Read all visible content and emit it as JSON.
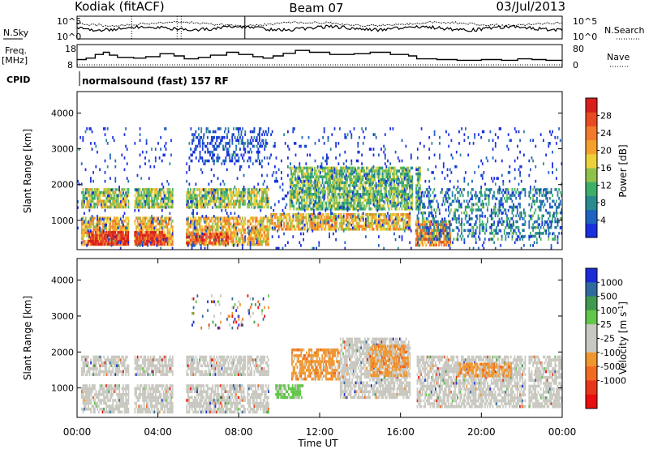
{
  "header": {
    "radar": "Kodiak (fitACF)",
    "beam": "Beam 07",
    "date": "03/Jul/2013"
  },
  "chart_data": [
    {
      "type": "line",
      "panel": "noise",
      "left_label": "N.Sky",
      "right_label": "N.Search",
      "left_ticks": [
        "10^5",
        "10^0"
      ],
      "right_ticks": [
        "10^5",
        "10^0"
      ],
      "yscale": "log"
    },
    {
      "type": "line",
      "panel": "frequency",
      "left_label_1": "Freq.",
      "left_label_2": "[MHz]",
      "right_label": "Nave",
      "left_ticks": [
        "18",
        "8"
      ],
      "right_ticks": [
        "80",
        "0"
      ],
      "freq_steps": [
        [
          0.0,
          10.5
        ],
        [
          0.45,
          11.5
        ],
        [
          0.9,
          14
        ],
        [
          1.3,
          15.5
        ],
        [
          1.6,
          13.5
        ],
        [
          2.0,
          12
        ],
        [
          2.8,
          11.5
        ],
        [
          3.4,
          12.5
        ],
        [
          4.1,
          14.5
        ],
        [
          4.8,
          13
        ],
        [
          5.3,
          11
        ],
        [
          6.0,
          12
        ],
        [
          6.6,
          13.5
        ],
        [
          7.4,
          15.5
        ],
        [
          8.0,
          14
        ],
        [
          8.7,
          12.5
        ],
        [
          9.2,
          11.5
        ],
        [
          9.7,
          13
        ],
        [
          10.2,
          14.8
        ],
        [
          10.8,
          16.8
        ],
        [
          11.5,
          15.5
        ],
        [
          12.5,
          14
        ],
        [
          13.7,
          14.5
        ],
        [
          14.5,
          15.5
        ],
        [
          15.5,
          14
        ],
        [
          16.4,
          13
        ],
        [
          16.8,
          11
        ],
        [
          17.8,
          10.5
        ],
        [
          18.8,
          10
        ],
        [
          20.0,
          10.5
        ],
        [
          21.0,
          10
        ],
        [
          21.8,
          11
        ],
        [
          22.5,
          10.5
        ],
        [
          23.2,
          10
        ]
      ],
      "nave_level": 5
    },
    {
      "type": "table",
      "panel": "cpid",
      "label": "CPID",
      "text": "normalsound (fast) 157 RF"
    },
    {
      "type": "heatmap",
      "panel": "power",
      "ylabel": "Slant Range [km]",
      "xlim": [
        0,
        24
      ],
      "ylim": [
        180,
        4600
      ],
      "yticks": [
        1000,
        2000,
        3000,
        4000
      ],
      "colorbar_label": "Power [dB]",
      "colorbar_ticks": [
        4,
        8,
        12,
        16,
        20,
        24,
        28
      ],
      "colorbar_range": [
        0,
        32
      ],
      "colors": [
        "#1a2fe0",
        "#1e63bf",
        "#2a8a8e",
        "#3cae6a",
        "#8fc24a",
        "#ecd13a",
        "#f4a02e",
        "#f07a2c",
        "#e84b22",
        "#d81f1c"
      ],
      "gaps_hours": [
        [
          2.55,
          2.8
        ],
        [
          4.7,
          5.35
        ],
        [
          8.3,
          8.4
        ],
        [
          16.55,
          16.7
        ],
        [
          22.2,
          22.3
        ]
      ],
      "bands": [
        {
          "t0": 0.2,
          "t1": 9.5,
          "r0": 300,
          "r1": 1100,
          "level": 0.62
        },
        {
          "t0": 0.5,
          "t1": 4.5,
          "r0": 300,
          "r1": 700,
          "level": 0.92
        },
        {
          "t0": 5.0,
          "t1": 7.5,
          "r0": 300,
          "r1": 650,
          "level": 0.85
        },
        {
          "t0": 0.2,
          "t1": 9.5,
          "r0": 1300,
          "r1": 1900,
          "level": 0.48
        },
        {
          "t0": 9.5,
          "t1": 16.5,
          "r0": 700,
          "r1": 1200,
          "level": 0.6
        },
        {
          "t0": 10.5,
          "t1": 17.0,
          "r0": 1300,
          "r1": 2500,
          "level": 0.4
        },
        {
          "t0": 16.6,
          "t1": 18.5,
          "r0": 300,
          "r1": 1000,
          "level": 0.72
        },
        {
          "t0": 16.8,
          "t1": 24.0,
          "r0": 400,
          "r1": 1900,
          "level": 0.25
        },
        {
          "t0": 5.6,
          "t1": 9.5,
          "r0": 2600,
          "r1": 3600,
          "level": 0.12
        },
        {
          "t0": 0.0,
          "t1": 24.0,
          "r0": 200,
          "r1": 3600,
          "level": 0.05
        }
      ]
    },
    {
      "type": "heatmap",
      "panel": "velocity",
      "xlabel": "Time UT",
      "ylabel": "Slant Range [km]",
      "xlim": [
        0,
        24
      ],
      "ylim": [
        180,
        4600
      ],
      "xticks": [
        "00:00",
        "04:00",
        "08:00",
        "12:00",
        "16:00",
        "20:00",
        "00:00"
      ],
      "yticks": [
        1000,
        2000,
        3000,
        4000
      ],
      "colorbar_label": "Velocity [m s",
      "colorbar_label_exp": "-1",
      "colorbar_label_end": "]",
      "colorbar_ticks": [
        "1000",
        "500",
        "100",
        "25",
        "-25",
        "-100",
        "-500",
        "-1000"
      ],
      "colors": [
        "#1c2bd8",
        "#2f6a9e",
        "#3f9a4e",
        "#62c64a",
        "#c8c8c0",
        "#c8c8c0",
        "#f0962e",
        "#f06a22",
        "#e8361c",
        "#e80e0e"
      ],
      "gaps_hours": [
        [
          2.55,
          2.8
        ],
        [
          4.7,
          5.35
        ],
        [
          8.3,
          8.4
        ],
        [
          16.55,
          16.7
        ],
        [
          22.2,
          22.3
        ]
      ],
      "bands": [
        {
          "t0": 0.2,
          "t1": 9.5,
          "r0": 300,
          "r1": 1100,
          "kind": "gray"
        },
        {
          "t0": 0.2,
          "t1": 9.5,
          "r0": 1300,
          "r1": 1900,
          "kind": "gray"
        },
        {
          "t0": 9.8,
          "t1": 11.2,
          "r0": 700,
          "r1": 1100,
          "kind": "green"
        },
        {
          "t0": 10.6,
          "t1": 13.0,
          "r0": 1200,
          "r1": 2100,
          "kind": "orange"
        },
        {
          "t0": 13.0,
          "t1": 16.5,
          "r0": 700,
          "r1": 2400,
          "kind": "gray"
        },
        {
          "t0": 14.5,
          "t1": 16.4,
          "r0": 1300,
          "r1": 2200,
          "kind": "orange"
        },
        {
          "t0": 16.8,
          "t1": 24.0,
          "r0": 400,
          "r1": 1900,
          "kind": "gray"
        },
        {
          "t0": 18.8,
          "t1": 21.5,
          "r0": 1300,
          "r1": 1700,
          "kind": "orange"
        },
        {
          "t0": 5.6,
          "t1": 9.5,
          "r0": 2600,
          "r1": 3600,
          "kind": "sparse"
        }
      ]
    }
  ]
}
